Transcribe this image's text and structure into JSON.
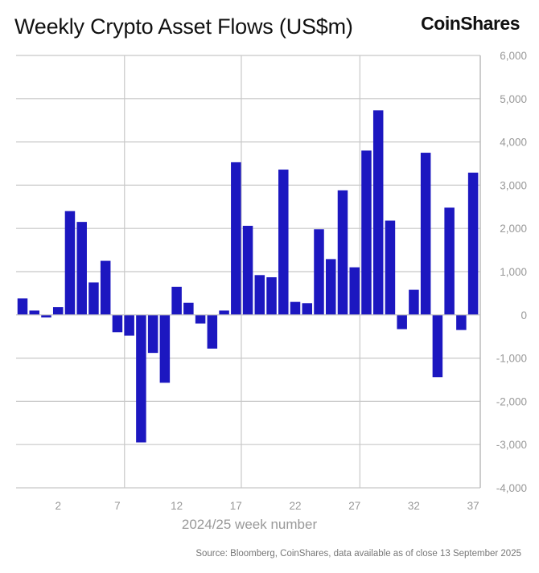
{
  "header": {
    "title": "Weekly Crypto Asset Flows (US$m)",
    "logo": "CoinShares"
  },
  "source": "Source: Bloomberg, CoinShares, data available as of close 13 September 2025",
  "chart_data": {
    "type": "bar",
    "title": "Weekly Crypto Asset Flows (US$m)",
    "xlabel": "2024/25 week number",
    "ylabel": "",
    "ylim": [
      -4000,
      6000
    ],
    "yticks": [
      6000,
      5000,
      4000,
      3000,
      2000,
      1000,
      0,
      -1000,
      -2000,
      -3000,
      -4000
    ],
    "ytick_labels": [
      "6,000",
      "5,000",
      "4,000",
      "3,000",
      "2,000",
      "1,000",
      "0",
      "-1,000",
      "-2,000",
      "-3,000",
      "-4,000"
    ],
    "xtick_labels": [
      "2",
      "7",
      "12",
      "17",
      "22",
      "27",
      "32",
      "37"
    ],
    "grid": true,
    "bar_color": "#1c17c0",
    "values": [
      380,
      100,
      -60,
      180,
      2400,
      2150,
      750,
      1250,
      -400,
      -480,
      -2950,
      -880,
      -1570,
      650,
      280,
      -200,
      -780,
      100,
      3530,
      2060,
      920,
      870,
      3360,
      300,
      270,
      1980,
      1290,
      2880,
      1100,
      3800,
      4730,
      2180,
      -330,
      580,
      3750,
      -1440,
      2480,
      -350,
      3290
    ]
  }
}
